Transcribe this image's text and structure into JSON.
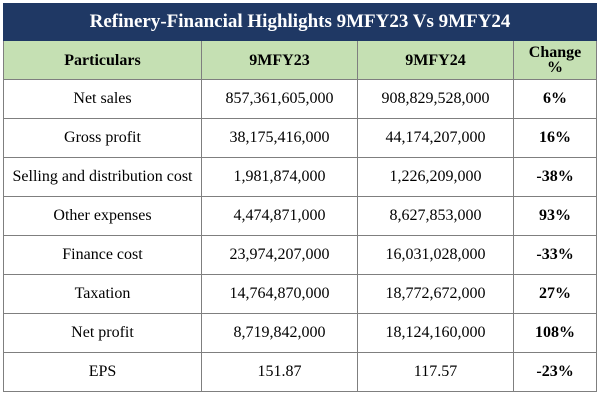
{
  "title": "Refinery-Financial Highlights 9MFY23 Vs 9MFY24",
  "headers": {
    "particulars": "Particulars",
    "col1": "9MFY23",
    "col2": "9MFY24",
    "change_line1": "Change",
    "change_line2": "%"
  },
  "rows": [
    {
      "label": "Net sales",
      "fy23": "857,361,605,000",
      "fy24": "908,829,528,000",
      "change": "6%"
    },
    {
      "label": "Gross profit",
      "fy23": "38,175,416,000",
      "fy24": "44,174,207,000",
      "change": "16%"
    },
    {
      "label": "Selling and distribution cost",
      "fy23": "1,981,874,000",
      "fy24": "1,226,209,000",
      "change": "-38%"
    },
    {
      "label": "Other expenses",
      "fy23": "4,474,871,000",
      "fy24": "8,627,853,000",
      "change": "93%"
    },
    {
      "label": "Finance cost",
      "fy23": "23,974,207,000",
      "fy24": "16,031,028,000",
      "change": "-33%"
    },
    {
      "label": "Taxation",
      "fy23": "14,764,870,000",
      "fy24": "18,772,672,000",
      "change": "27%"
    },
    {
      "label": "Net profit",
      "fy23": "8,719,842,000",
      "fy24": "18,124,160,000",
      "change": "108%"
    },
    {
      "label": "EPS",
      "fy23": "151.87",
      "fy24": "117.57",
      "change": "-23%"
    }
  ],
  "colors": {
    "title_bg": "#1f3864",
    "header_bg": "#c5e0b3",
    "border": "#7f7f7f"
  }
}
